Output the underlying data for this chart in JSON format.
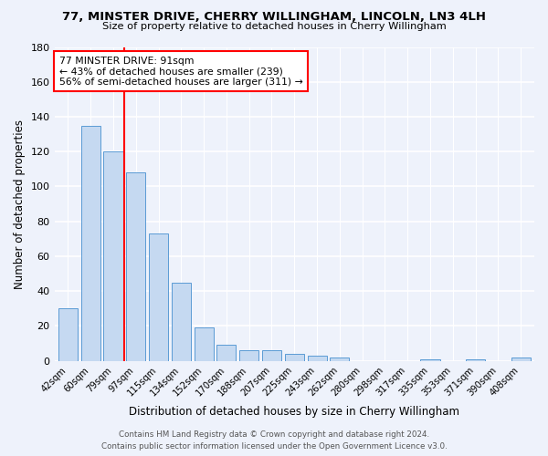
{
  "title_line1": "77, MINSTER DRIVE, CHERRY WILLINGHAM, LINCOLN, LN3 4LH",
  "title_line2": "Size of property relative to detached houses in Cherry Willingham",
  "xlabel": "Distribution of detached houses by size in Cherry Willingham",
  "ylabel": "Number of detached properties",
  "categories": [
    "42sqm",
    "60sqm",
    "79sqm",
    "97sqm",
    "115sqm",
    "134sqm",
    "152sqm",
    "170sqm",
    "188sqm",
    "207sqm",
    "225sqm",
    "243sqm",
    "262sqm",
    "280sqm",
    "298sqm",
    "317sqm",
    "335sqm",
    "353sqm",
    "371sqm",
    "390sqm",
    "408sqm"
  ],
  "values": [
    30,
    135,
    120,
    108,
    73,
    45,
    19,
    9,
    6,
    6,
    4,
    3,
    2,
    0,
    0,
    0,
    1,
    0,
    1,
    0,
    2
  ],
  "bar_color": "#c5d9f1",
  "bar_edge_color": "#5b9bd5",
  "vline_x": 2.5,
  "vline_color": "red",
  "annotation_text": "77 MINSTER DRIVE: 91sqm\n← 43% of detached houses are smaller (239)\n56% of semi-detached houses are larger (311) →",
  "annotation_box_color": "white",
  "annotation_box_edge": "red",
  "footer_line1": "Contains HM Land Registry data © Crown copyright and database right 2024.",
  "footer_line2": "Contains public sector information licensed under the Open Government Licence v3.0.",
  "bg_color": "#eef2fb",
  "ylim": [
    0,
    180
  ],
  "yticks": [
    0,
    20,
    40,
    60,
    80,
    100,
    120,
    140,
    160,
    180
  ],
  "grid_color": "white"
}
